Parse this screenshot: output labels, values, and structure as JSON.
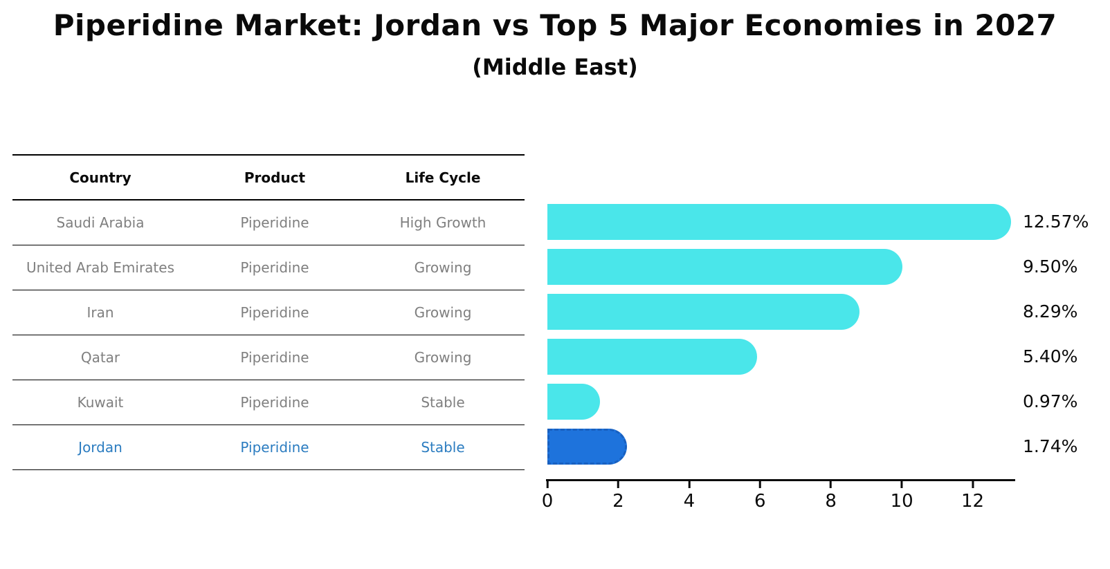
{
  "title": "Piperidine Market: Jordan vs Top 5 Major Economies in 2027",
  "subtitle": "(Middle East)",
  "table": {
    "headers": [
      "Country",
      "Product",
      "Life Cycle"
    ],
    "rows": [
      {
        "country": "Saudi Arabia",
        "product": "Piperidine",
        "life_cycle": "High Growth"
      },
      {
        "country": "United Arab Emirates",
        "product": "Piperidine",
        "life_cycle": "Growing"
      },
      {
        "country": "Iran",
        "product": "Piperidine",
        "life_cycle": "Growing"
      },
      {
        "country": "Qatar",
        "product": "Piperidine",
        "life_cycle": "Growing"
      },
      {
        "country": "Kuwait",
        "product": "Piperidine",
        "life_cycle": "Stable"
      },
      {
        "country": "Jordan",
        "product": "Piperidine",
        "life_cycle": "Stable"
      }
    ]
  },
  "chart_data": {
    "type": "bar",
    "orientation": "horizontal",
    "title": "Piperidine Market: Jordan vs Top 5 Major Economies in 2027",
    "subtitle": "(Middle East)",
    "categories": [
      "Saudi Arabia",
      "United Arab Emirates",
      "Iran",
      "Qatar",
      "Kuwait",
      "Jordan"
    ],
    "values": [
      12.57,
      9.5,
      8.29,
      5.4,
      0.97,
      1.74
    ],
    "value_labels": [
      "12.57%",
      "9.50%",
      "8.29%",
      "5.40%",
      "0.97%",
      "1.74%"
    ],
    "x_ticks": [
      "0",
      "2",
      "4",
      "6",
      "8",
      "10",
      "12"
    ],
    "x_tick_values": [
      0,
      2,
      4,
      6,
      8,
      10,
      12
    ],
    "xlim": [
      0,
      13.2
    ],
    "grid": false,
    "legend": "none",
    "bar_color": "#4ae6ea",
    "highlight_index": 5,
    "highlight_bar_color": "#1e73dc",
    "highlight_border_color": "#1860c0",
    "highlight_text_color": "#2b7cc0",
    "cap_radius_px": 26
  },
  "colors": {
    "background": "#ffffff",
    "table_text": "#7f7f7f",
    "header_text": "#0a0a0a",
    "axis": "#0a0a0a"
  }
}
